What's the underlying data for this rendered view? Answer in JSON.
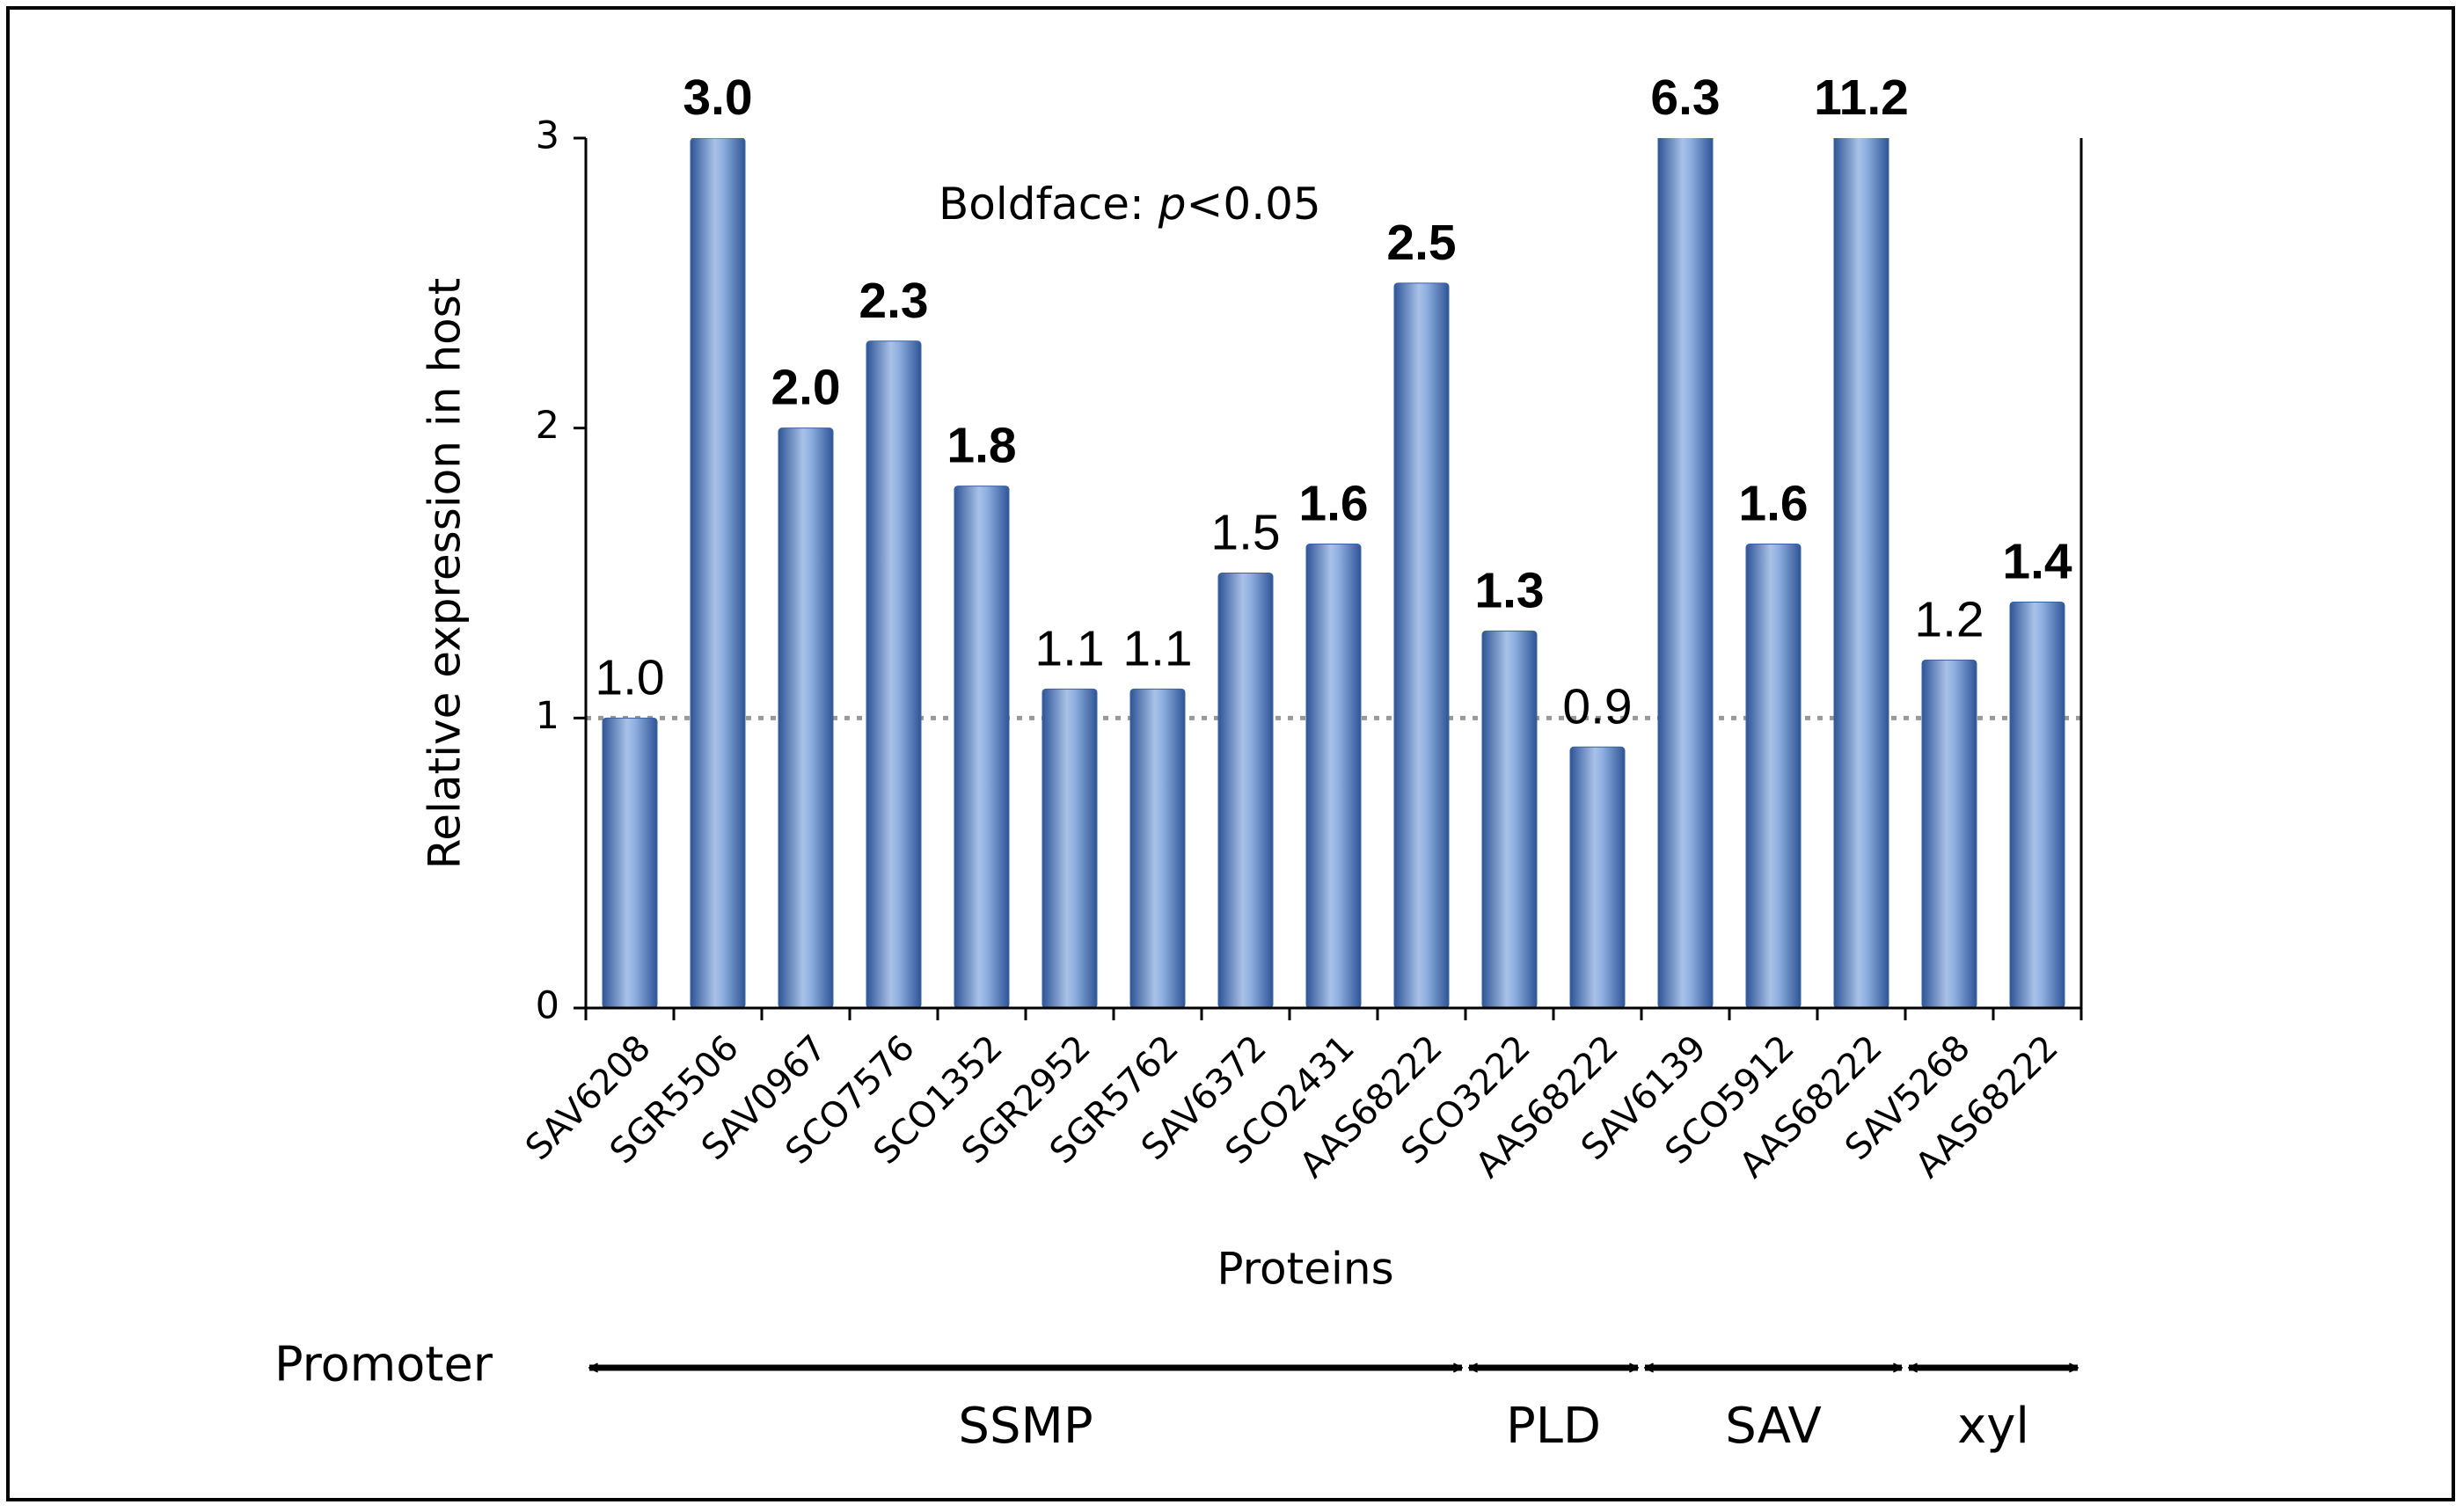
{
  "chart_data": {
    "type": "bar",
    "x_label": "Proteins",
    "y_label": "Relative expression in host",
    "annotation": [
      "Boldface: ",
      "p",
      "<0.05"
    ],
    "categories": [
      "SAV6208",
      "SGR5506",
      "SAV0967",
      "SCO7576",
      "SCO1352",
      "SGR2952",
      "SGR5762",
      "SAV6372",
      "SCO2431",
      "AAS68222",
      "SCO3222",
      "AAS68222",
      "SAV6139",
      "SCO5912",
      "AAS68222",
      "SAV5268",
      "AAS68222"
    ],
    "values": [
      1.0,
      3.0,
      2.0,
      2.3,
      1.8,
      1.1,
      1.1,
      1.5,
      1.6,
      2.5,
      1.3,
      0.9,
      6.3,
      1.6,
      11.2,
      1.2,
      1.4
    ],
    "value_labels": [
      "1.0",
      "3.0",
      "2.0",
      "2.3",
      "1.8",
      "1.1",
      "1.1",
      "1.5",
      "1.6",
      "2.5",
      "1.3",
      "0.9",
      "6.3",
      "1.6",
      "11.2",
      "1.2",
      "1.4"
    ],
    "bold": [
      false,
      true,
      true,
      true,
      true,
      false,
      false,
      false,
      true,
      true,
      true,
      false,
      true,
      true,
      true,
      false,
      true
    ],
    "color": "#4f81bd",
    "ylim": [
      0,
      3
    ],
    "yticks": [
      0,
      1,
      2,
      3
    ],
    "reference_line": 1,
    "group_title": "Promoter",
    "groups": [
      {
        "label": "SSMP",
        "count": 10
      },
      {
        "label": "PLD",
        "count": 2
      },
      {
        "label": "SAV",
        "count": 3
      },
      {
        "label": "xyl",
        "count": 2
      }
    ]
  }
}
